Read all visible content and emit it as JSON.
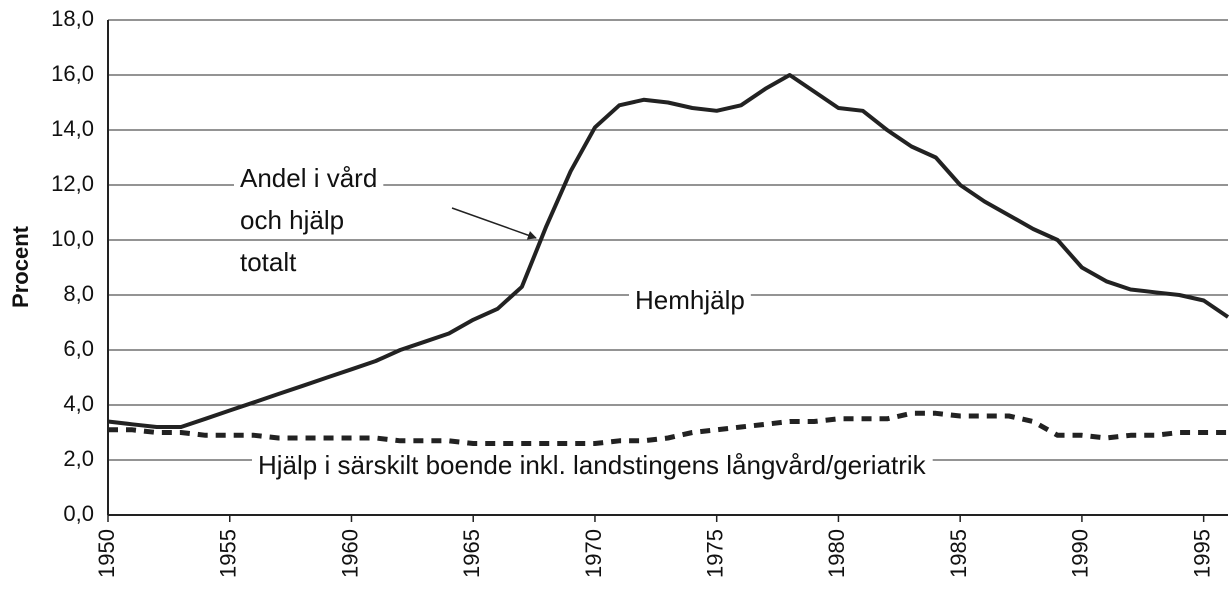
{
  "chart_data": {
    "type": "line",
    "y_label": "Procent",
    "x": [
      1950,
      1951,
      1952,
      1953,
      1954,
      1955,
      1956,
      1957,
      1958,
      1959,
      1960,
      1961,
      1962,
      1963,
      1964,
      1965,
      1966,
      1967,
      1968,
      1969,
      1970,
      1971,
      1972,
      1973,
      1974,
      1975,
      1976,
      1977,
      1978,
      1979,
      1980,
      1981,
      1982,
      1983,
      1984,
      1985,
      1986,
      1987,
      1988,
      1989,
      1990,
      1991,
      1992,
      1993,
      1994,
      1995,
      1996
    ],
    "series": [
      {
        "color": "#222222",
        "style": "solid",
        "values": [
          3.4,
          3.3,
          3.2,
          3.2,
          3.5,
          3.8,
          4.1,
          4.4,
          4.7,
          5.0,
          5.3,
          5.6,
          6.0,
          6.3,
          6.6,
          7.1,
          7.5,
          8.3,
          10.5,
          12.5,
          14.1,
          14.9,
          15.1,
          15.0,
          14.8,
          14.7,
          14.9,
          15.5,
          16.0,
          15.4,
          14.8,
          14.7,
          14.0,
          13.4,
          13.0,
          12.0,
          11.4,
          10.9,
          10.4,
          10.0,
          9.0,
          8.5,
          8.2,
          8.1,
          8.0,
          7.8,
          7.2
        ]
      },
      {
        "color": "#222222",
        "style": "dotted",
        "values": [
          3.1,
          3.1,
          3.0,
          3.0,
          2.9,
          2.9,
          2.9,
          2.8,
          2.8,
          2.8,
          2.8,
          2.8,
          2.7,
          2.7,
          2.7,
          2.6,
          2.6,
          2.6,
          2.6,
          2.6,
          2.6,
          2.7,
          2.7,
          2.8,
          3.0,
          3.1,
          3.2,
          3.3,
          3.4,
          3.4,
          3.5,
          3.5,
          3.5,
          3.7,
          3.7,
          3.6,
          3.6,
          3.6,
          3.4,
          2.9,
          2.9,
          2.8,
          2.9,
          2.9,
          3.0,
          3.0,
          3.0
        ]
      }
    ],
    "xlim": [
      1950,
      1996
    ],
    "xticks": [
      1950,
      1955,
      1960,
      1965,
      1970,
      1975,
      1980,
      1985,
      1990,
      1995
    ],
    "ylim": [
      0,
      18
    ],
    "yticks": [
      {
        "value": 0,
        "label": "0,0"
      },
      {
        "value": 2,
        "label": "2,0"
      },
      {
        "value": 4,
        "label": "4,0"
      },
      {
        "value": 6,
        "label": "6,0"
      },
      {
        "value": 8,
        "label": "8,0"
      },
      {
        "value": 10,
        "label": "10,0"
      },
      {
        "value": 12,
        "label": "12,0"
      },
      {
        "value": 14,
        "label": "14,0"
      },
      {
        "value": 16,
        "label": "16,0"
      },
      {
        "value": 18,
        "label": "18,0"
      }
    ],
    "grid": true,
    "annotations": [
      {
        "lines": [
          "Andel i vård",
          "och hjälp",
          "totalt"
        ]
      },
      {
        "lines": [
          "Hemhjälp"
        ]
      },
      {
        "lines": [
          "Hjälp i särskilt boende inkl. landstingens långvård/geriatrik"
        ]
      }
    ]
  }
}
